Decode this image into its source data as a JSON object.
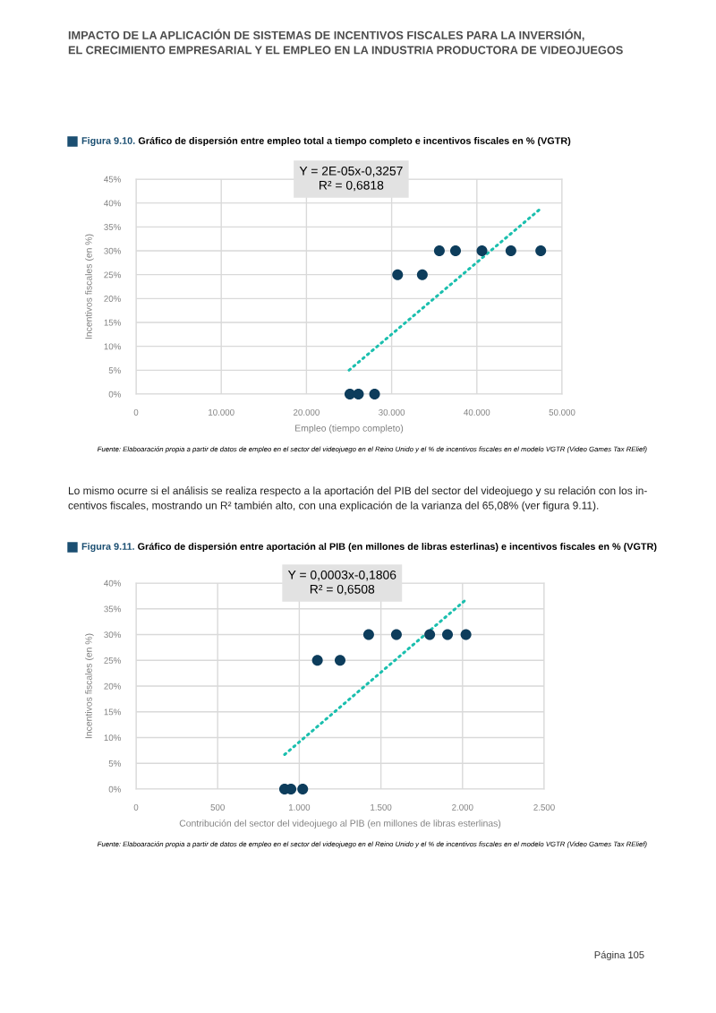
{
  "chart_data": [
    {
      "type": "scatter",
      "title": "Figura 9.10. Gráfico de dispersión entre empleo total a tiempo completo e incentivos fiscales en % (VGTR)",
      "xlabel": "Empleo (tiempo completo)",
      "ylabel": "Incentivos fiscales (en %)",
      "annotations": [
        "IMPACTO DE LA APLICACIÓN DE SISTEMAS DE INCENTIVOS FISCALES PARA LA INVERSIÓN,\nEL CRECIMIENTO EMPRESARIAL Y EL EMPLEO EN LA INDUSTRIA PRODUCTORA DE VIDEOJUEGOS",
        "Y = 2E-05x-0,3257\nR² = 0,6818",
        "Fuente: Elaboaración propia a partir de datos de empleo en el sector del videojuego en el Reino Unido y el % de incentivos fiscales en el modelo VGTR (Video Games Tax RElief)"
      ],
      "series": [
        {
          "color": "#0d3d5c",
          "marker": "circle",
          "x": [
            25100,
            26100,
            28000,
            30700,
            33600,
            35600,
            37500,
            40600,
            44000,
            47500
          ],
          "values": [
            0,
            0,
            0,
            25,
            25,
            30,
            30,
            30,
            30,
            30
          ]
        },
        {
          "type": "line",
          "color": "#1bbfae",
          "line_style": "dotted",
          "x": [
            25000,
            47600
          ],
          "values": [
            5,
            39
          ]
        }
      ],
      "xlim": [
        0,
        50000
      ],
      "xticks": [
        0,
        {
          "value": 10000,
          "label": "10.000"
        },
        {
          "value": 20000,
          "label": "20.000"
        },
        {
          "value": 30000,
          "label": "30.000"
        },
        {
          "value": 40000,
          "label": "40.000"
        },
        {
          "value": 50000,
          "label": "50.000"
        }
      ],
      "ylim": [
        0,
        45
      ],
      "yticks": [
        {
          "value": 0,
          "label": "0%"
        },
        {
          "value": 5,
          "label": "5%"
        },
        {
          "value": 10,
          "label": "10%"
        },
        {
          "value": 15,
          "label": "15%"
        },
        {
          "value": 20,
          "label": "20%"
        },
        {
          "value": 25,
          "label": "25%"
        },
        {
          "value": 30,
          "label": "30%"
        },
        {
          "value": 35,
          "label": "35%"
        },
        {
          "value": 40,
          "label": "40%"
        },
        {
          "value": 45,
          "label": "45%"
        }
      ],
      "grid": true
    },
    {
      "type": "scatter",
      "title": "Figura 9.11. Gráfico de dispersión entre aportación al PIB (en millones de libras esterlinas) e incentivos fiscales en % (VGTR)",
      "xlabel": "Contribución del sector del videojuego al PIB (en millones de libras esterlinas)",
      "ylabel": "Incentivos fiscales (en %)",
      "annotations": [
        "Lo mismo ocurre si el análisis se realiza respecto a la aportación del PIB del sector del videojuego y su relación con los in-\ncentivos fiscales, mostrando un R² también alto, con una explicación de la varianza del 65,08% (ver figura 9.11).",
        "Y = 0,0003x-0,1806\nR² = 0,6508",
        "Fuente: Elaboaración propia a partir de datos de empleo en el sector del videojuego en el Reino Unido y el % de incentivos fiscales en el modelo VGTR (Video Games Tax RElief)",
        "Página 105"
      ],
      "series": [
        {
          "color": "#0d3d5c",
          "marker": "circle",
          "x": [
            910,
            949,
            1021,
            1111,
            1250,
            1425,
            1595,
            1799,
            1908,
            2021
          ],
          "values": [
            0,
            0,
            0,
            25,
            25,
            30,
            30,
            30,
            30,
            30
          ]
        },
        {
          "type": "line",
          "color": "#1bbfae",
          "line_style": "dotted",
          "x": [
            910,
            2029
          ],
          "values": [
            6.7,
            37
          ]
        }
      ],
      "xlim": [
        0,
        2500
      ],
      "xticks": [
        0,
        500,
        {
          "value": 1000,
          "label": "1.000"
        },
        {
          "value": 1500,
          "label": "1.500"
        },
        {
          "value": 2000,
          "label": "2.000"
        },
        {
          "value": 2500,
          "label": "2.500"
        }
      ],
      "ylim": [
        0,
        40
      ],
      "yticks": [
        {
          "value": 0,
          "label": "0%"
        },
        {
          "value": 5,
          "label": "5%"
        },
        {
          "value": 10,
          "label": "10%"
        },
        {
          "value": 15,
          "label": "15%"
        },
        {
          "value": 20,
          "label": "20%"
        },
        {
          "value": 25,
          "label": "25%"
        },
        {
          "value": 30,
          "label": "30%"
        },
        {
          "value": 35,
          "label": "35%"
        },
        {
          "value": 40,
          "label": "40%"
        }
      ],
      "grid": true
    }
  ]
}
